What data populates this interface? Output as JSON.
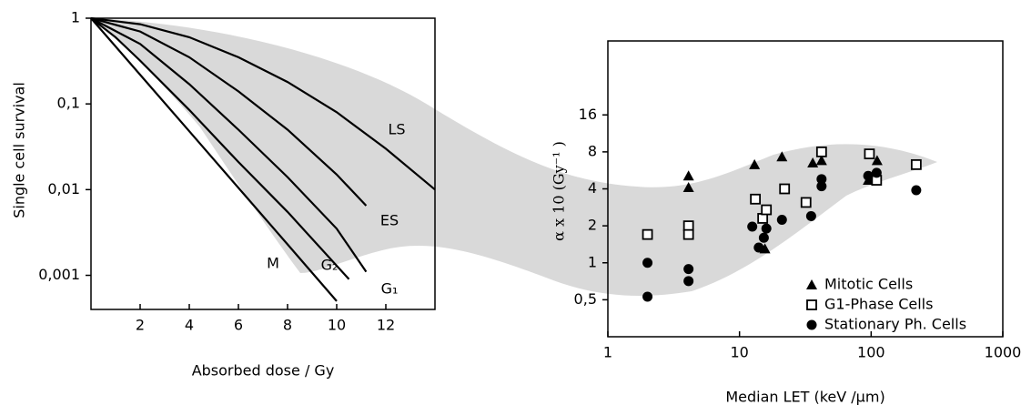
{
  "chart_data": [
    {
      "type": "line",
      "x_label": "Absorbed dose / Gy",
      "y_label": "Single cell survival",
      "xlim": [
        0,
        14
      ],
      "xticks": [
        2,
        4,
        6,
        8,
        10,
        12
      ],
      "ylim": [
        0.0004,
        1
      ],
      "yscale": "log",
      "yticks": [
        1,
        {
          "value": 0.1,
          "label": "0,1"
        },
        {
          "value": 0.01,
          "label": "0,01"
        },
        {
          "value": 0.001,
          "label": "0,001"
        }
      ],
      "series": [
        {
          "name": "M",
          "color": "#000000",
          "x": [
            0,
            2,
            4,
            6,
            8,
            10
          ],
          "values": [
            1,
            0.219,
            0.048,
            0.0105,
            0.0023,
            0.0005
          ]
        },
        {
          "name": "G₂",
          "color": "#000000",
          "x": [
            0,
            1,
            2,
            4,
            6,
            8,
            10.5
          ],
          "values": [
            1,
            0.6,
            0.32,
            0.085,
            0.021,
            0.0055,
            0.0009
          ]
        },
        {
          "name": "G₁",
          "color": "#000000",
          "x": [
            0,
            2,
            4,
            6,
            8,
            10,
            11.2
          ],
          "values": [
            1,
            0.5,
            0.17,
            0.05,
            0.014,
            0.0035,
            0.0011
          ]
        },
        {
          "name": "ES",
          "color": "#000000",
          "x": [
            0,
            2,
            4,
            6,
            8,
            10,
            11.2
          ],
          "values": [
            1,
            0.7,
            0.35,
            0.14,
            0.05,
            0.015,
            0.0065
          ]
        },
        {
          "name": "LS",
          "color": "#000000",
          "x": [
            0,
            2,
            4,
            6,
            8,
            10,
            12,
            14
          ],
          "values": [
            1,
            0.85,
            0.6,
            0.35,
            0.18,
            0.08,
            0.03,
            0.01
          ]
        }
      ]
    },
    {
      "type": "scatter",
      "x_label": "Median LET (keV /µm)",
      "y_label": "α x 10 (Gy⁻¹ )",
      "xlim": [
        1,
        1000
      ],
      "xscale": "log",
      "xticks": [
        1,
        10,
        100,
        1000
      ],
      "ylim": [
        0.25,
        64
      ],
      "yscale": "log",
      "yticks": [
        {
          "value": 0.5,
          "label": "0,5"
        },
        1,
        2,
        4,
        8,
        16
      ],
      "legend": "lower right",
      "series": [
        {
          "name": "Mitotic Cells",
          "marker": "triangle",
          "color": "#000000",
          "x": [
            4.1,
            4.1,
            13,
            15.6,
            21,
            36,
            42,
            95,
            111
          ],
          "values": [
            5.1,
            4.1,
            6.3,
            1.3,
            7.3,
            6.5,
            6.8,
            4.7,
            6.8
          ]
        },
        {
          "name": "G1-Phase Cells",
          "marker": "square",
          "color": "#000000",
          "x": [
            2,
            4.1,
            4.1,
            13.2,
            15,
            16,
            22,
            32,
            42,
            97,
            110,
            220
          ],
          "values": [
            1.7,
            2.0,
            1.7,
            3.3,
            2.3,
            2.7,
            4.0,
            3.1,
            8,
            7.7,
            4.7,
            6.3
          ]
        },
        {
          "name": "Stationary Ph. Cells",
          "marker": "circle",
          "color": "#000000",
          "x": [
            2,
            2,
            4.1,
            4.1,
            12.5,
            14,
            15.3,
            16,
            21,
            35,
            42,
            42,
            95,
            110,
            220
          ],
          "values": [
            1.0,
            0.53,
            0.89,
            0.71,
            1.97,
            1.33,
            1.6,
            1.9,
            2.24,
            2.4,
            4.2,
            4.8,
            5.1,
            5.4,
            3.9
          ]
        }
      ]
    }
  ]
}
